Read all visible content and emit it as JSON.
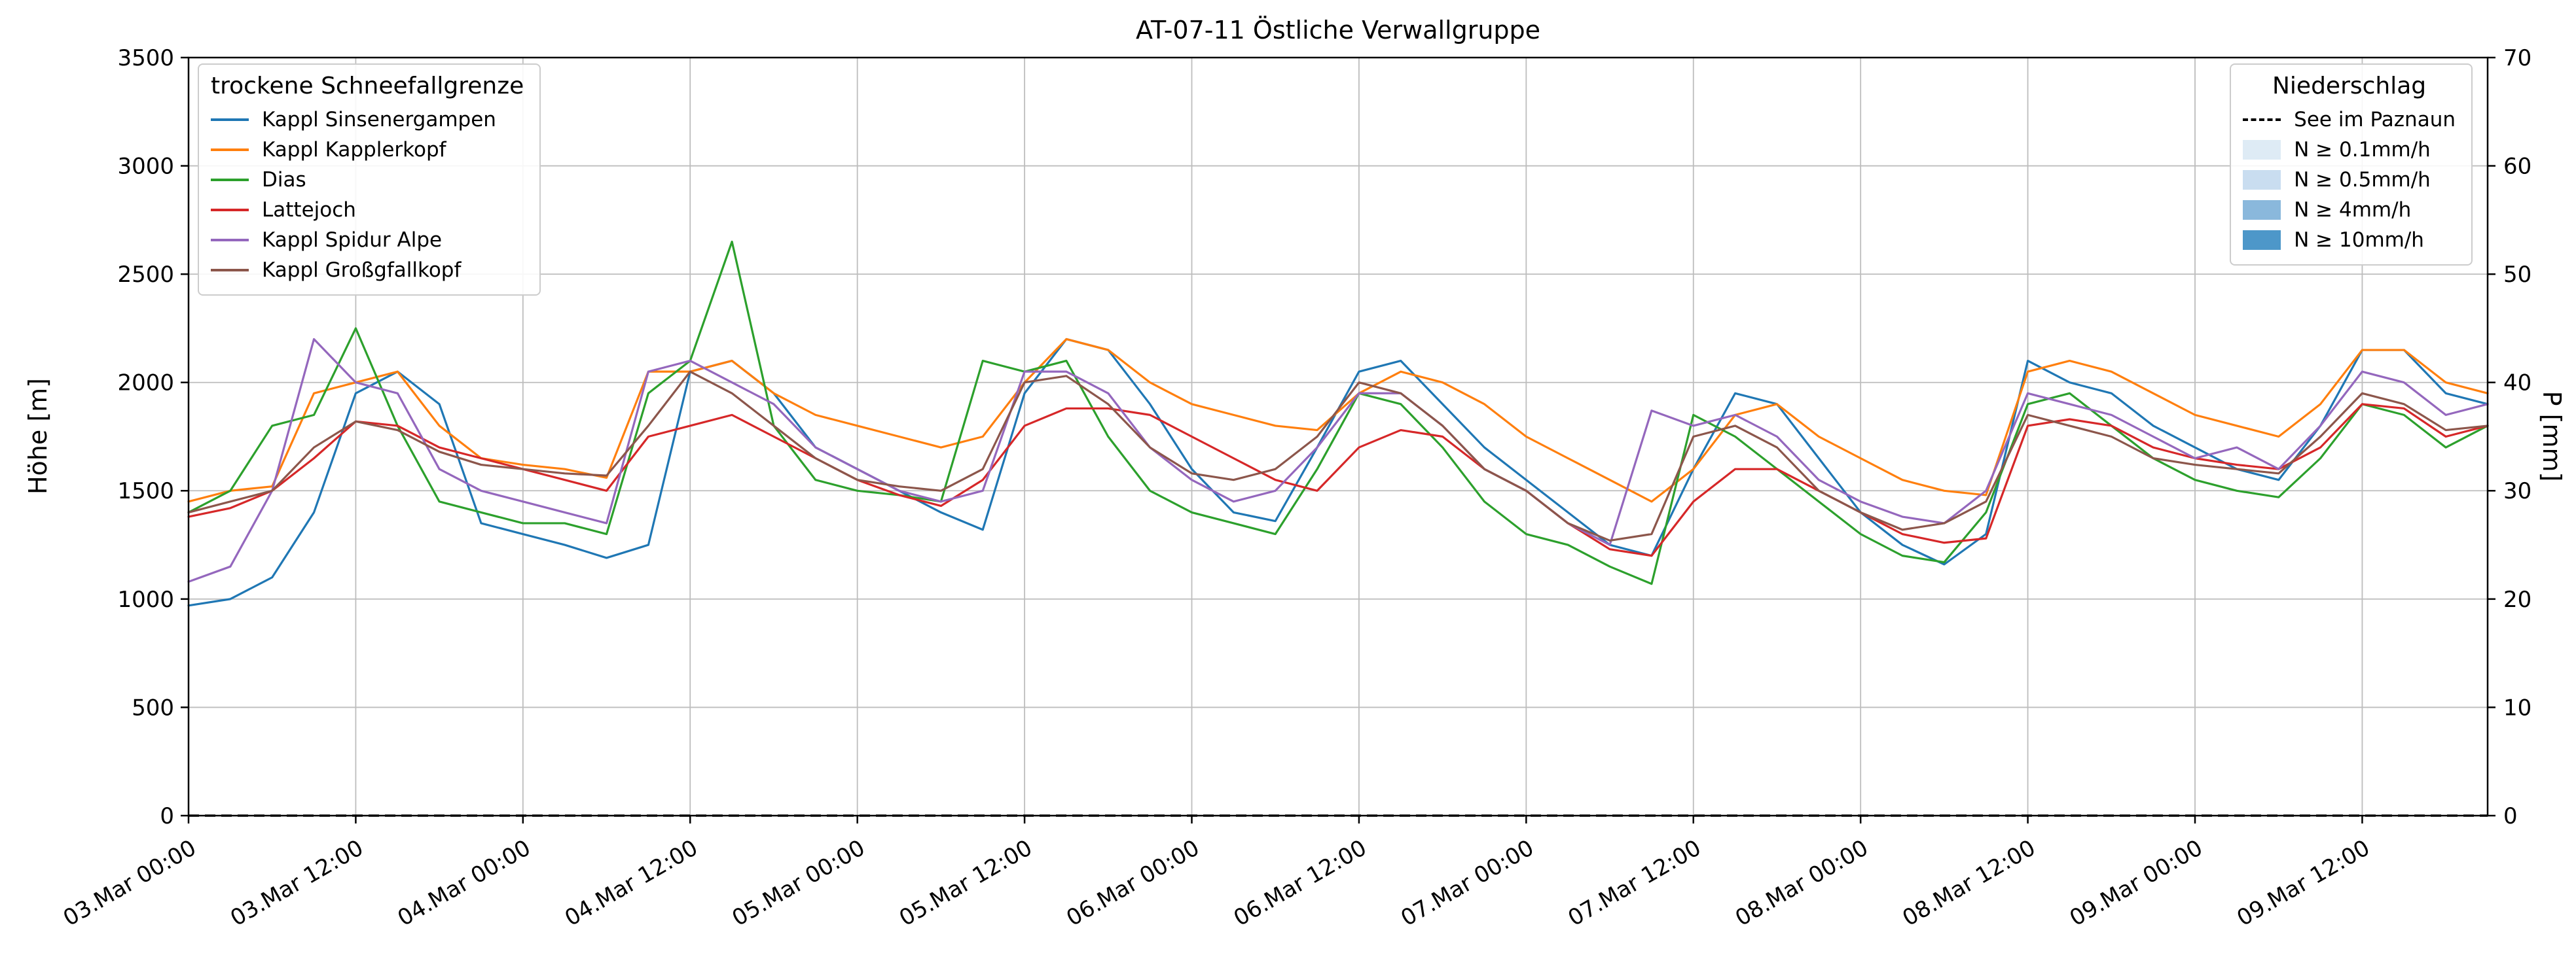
{
  "chart_data": {
    "type": "line",
    "title": "AT-07-11 Östliche Verwallgruppe",
    "ylabel_left": "Höhe [m]",
    "ylabel_right": "P [mm]",
    "ylim_left": [
      0,
      3500
    ],
    "ylim_right": [
      0,
      70
    ],
    "yticks_left": [
      0,
      500,
      1000,
      1500,
      2000,
      2500,
      3000,
      3500
    ],
    "yticks_right": [
      0,
      10,
      20,
      30,
      40,
      50,
      60,
      70
    ],
    "xlim_hours": [
      0,
      165
    ],
    "grid": true,
    "xticks": [
      {
        "hour": 0,
        "label": "03.Mar 00:00"
      },
      {
        "hour": 12,
        "label": "03.Mar 12:00"
      },
      {
        "hour": 24,
        "label": "04.Mar 00:00"
      },
      {
        "hour": 36,
        "label": "04.Mar 12:00"
      },
      {
        "hour": 48,
        "label": "05.Mar 00:00"
      },
      {
        "hour": 60,
        "label": "05.Mar 12:00"
      },
      {
        "hour": 72,
        "label": "06.Mar 00:00"
      },
      {
        "hour": 84,
        "label": "06.Mar 12:00"
      },
      {
        "hour": 96,
        "label": "07.Mar 00:00"
      },
      {
        "hour": 108,
        "label": "07.Mar 12:00"
      },
      {
        "hour": 120,
        "label": "08.Mar 00:00"
      },
      {
        "hour": 132,
        "label": "08.Mar 12:00"
      },
      {
        "hour": 144,
        "label": "09.Mar 00:00"
      },
      {
        "hour": 156,
        "label": "09.Mar 12:00"
      }
    ],
    "x_hours": [
      0,
      3,
      6,
      9,
      12,
      15,
      18,
      21,
      24,
      27,
      30,
      33,
      36,
      39,
      42,
      45,
      48,
      51,
      54,
      57,
      60,
      63,
      66,
      69,
      72,
      75,
      78,
      81,
      84,
      87,
      90,
      93,
      96,
      99,
      102,
      105,
      108,
      111,
      114,
      117,
      120,
      123,
      126,
      129,
      132,
      135,
      138,
      141,
      144,
      147,
      150,
      153,
      156,
      159,
      162,
      165
    ],
    "series": [
      {
        "name": "Kappl Sinsenergampen",
        "color": "#1f77b4",
        "values": [
          970,
          1000,
          1100,
          1400,
          1950,
          2050,
          1900,
          1350,
          1300,
          1250,
          1190,
          1250,
          2050,
          2100,
          1950,
          1700,
          1600,
          1500,
          1400,
          1320,
          1950,
          2200,
          2150,
          1900,
          1600,
          1400,
          1360,
          1700,
          2050,
          2100,
          1900,
          1700,
          1550,
          1400,
          1250,
          1200,
          1600,
          1950,
          1900,
          1650,
          1400,
          1250,
          1160,
          1300,
          2100,
          2000,
          1950,
          1800,
          1700,
          1600,
          1550,
          1800,
          2150,
          2150,
          1950,
          1900
        ]
      },
      {
        "name": "Kappl Kapplerkopf",
        "color": "#ff7f0e",
        "values": [
          1450,
          1500,
          1520,
          1950,
          2000,
          2050,
          1800,
          1650,
          1620,
          1600,
          1560,
          2050,
          2050,
          2100,
          1950,
          1850,
          1800,
          1750,
          1700,
          1750,
          2000,
          2200,
          2150,
          2000,
          1900,
          1850,
          1800,
          1780,
          1950,
          2050,
          2000,
          1900,
          1750,
          1650,
          1550,
          1450,
          1600,
          1850,
          1900,
          1750,
          1650,
          1550,
          1500,
          1480,
          2050,
          2100,
          2050,
          1950,
          1850,
          1800,
          1750,
          1900,
          2150,
          2150,
          2000,
          1950
        ]
      },
      {
        "name": "Dias",
        "color": "#2ca02c",
        "values": [
          1400,
          1500,
          1800,
          1850,
          2250,
          1800,
          1450,
          1400,
          1350,
          1350,
          1300,
          1950,
          2100,
          2650,
          1800,
          1550,
          1500,
          1480,
          1450,
          2100,
          2050,
          2100,
          1750,
          1500,
          1400,
          1350,
          1300,
          1600,
          1950,
          1900,
          1700,
          1450,
          1300,
          1250,
          1150,
          1070,
          1850,
          1750,
          1600,
          1450,
          1300,
          1200,
          1170,
          1400,
          1900,
          1950,
          1800,
          1650,
          1550,
          1500,
          1470,
          1650,
          1900,
          1850,
          1700,
          1800
        ]
      },
      {
        "name": "Lattejoch",
        "color": "#d62728",
        "values": [
          1380,
          1420,
          1500,
          1650,
          1820,
          1800,
          1700,
          1650,
          1600,
          1550,
          1500,
          1750,
          1800,
          1850,
          1750,
          1650,
          1550,
          1480,
          1430,
          1550,
          1800,
          1880,
          1880,
          1850,
          1750,
          1650,
          1550,
          1500,
          1700,
          1780,
          1750,
          1600,
          1500,
          1350,
          1230,
          1200,
          1450,
          1600,
          1600,
          1500,
          1400,
          1300,
          1260,
          1280,
          1800,
          1830,
          1800,
          1700,
          1650,
          1620,
          1600,
          1700,
          1900,
          1880,
          1750,
          1800
        ]
      },
      {
        "name": "Kappl Spidur Alpe",
        "color": "#9467bd",
        "values": [
          1080,
          1150,
          1500,
          2200,
          2000,
          1950,
          1600,
          1500,
          1450,
          1400,
          1350,
          2050,
          2100,
          2000,
          1900,
          1700,
          1600,
          1500,
          1450,
          1500,
          2050,
          2050,
          1950,
          1700,
          1550,
          1450,
          1500,
          1700,
          1950,
          1950,
          1800,
          1600,
          1500,
          1350,
          1250,
          1870,
          1800,
          1850,
          1750,
          1550,
          1450,
          1380,
          1350,
          1500,
          1950,
          1900,
          1850,
          1750,
          1650,
          1700,
          1600,
          1800,
          2050,
          2000,
          1850,
          1900
        ]
      },
      {
        "name": "Kappl Großgfallkopf",
        "color": "#8c564b",
        "values": [
          1400,
          1450,
          1500,
          1700,
          1820,
          1780,
          1680,
          1620,
          1600,
          1580,
          1570,
          1800,
          2050,
          1950,
          1800,
          1650,
          1550,
          1520,
          1500,
          1600,
          2000,
          2030,
          1900,
          1700,
          1580,
          1550,
          1600,
          1750,
          2000,
          1950,
          1800,
          1600,
          1500,
          1350,
          1270,
          1300,
          1750,
          1800,
          1700,
          1500,
          1400,
          1320,
          1350,
          1450,
          1850,
          1800,
          1750,
          1650,
          1620,
          1600,
          1580,
          1750,
          1950,
          1900,
          1780,
          1800
        ]
      }
    ],
    "precip_line": {
      "name": "See im Paznaun",
      "color": "#000000",
      "linestyle": "dashed",
      "axis": "right",
      "x_hours": [
        0,
        165
      ],
      "values": [
        0,
        0
      ]
    },
    "legends": {
      "snowline": {
        "title": "trockene Schneefallgrenze",
        "entries": [
          {
            "label": "Kappl Sinsenergampen",
            "color": "#1f77b4"
          },
          {
            "label": "Kappl Kapplerkopf",
            "color": "#ff7f0e"
          },
          {
            "label": "Dias",
            "color": "#2ca02c"
          },
          {
            "label": "Lattejoch",
            "color": "#d62728"
          },
          {
            "label": "Kappl Spidur Alpe",
            "color": "#9467bd"
          },
          {
            "label": "Kappl Großgfallkopf",
            "color": "#8c564b"
          }
        ]
      },
      "precip": {
        "title": "Niederschlag",
        "line_entry": {
          "label": "See im Paznaun",
          "color": "#000000",
          "linestyle": "dashed"
        },
        "patches": [
          {
            "label": "N ≥ 0.1mm/h",
            "color": "#deebf5"
          },
          {
            "label": "N ≥ 0.5mm/h",
            "color": "#c9ddf0"
          },
          {
            "label": "N ≥ 4mm/h",
            "color": "#8ab8dc"
          },
          {
            "label": "N ≥ 10mm/h",
            "color": "#4d97c9"
          }
        ]
      }
    },
    "style": {
      "grid_color": "#bdbdbd",
      "spine_color": "#000000",
      "background": "#ffffff"
    }
  }
}
